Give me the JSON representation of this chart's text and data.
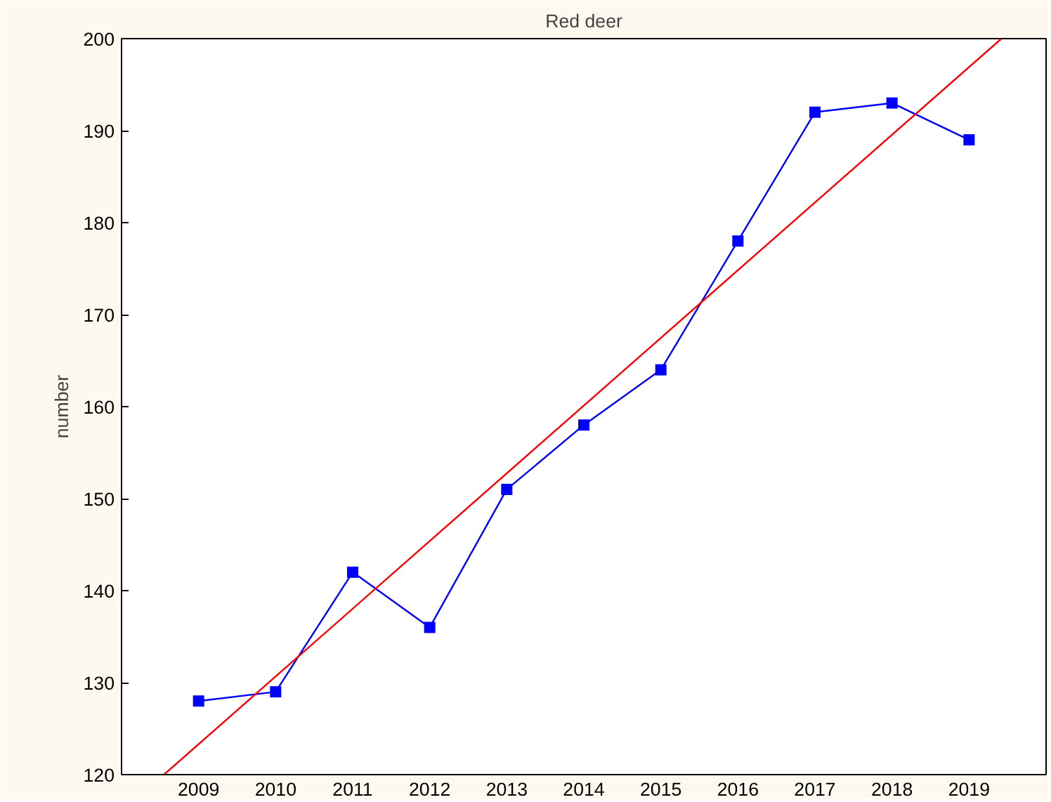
{
  "chart_data": {
    "type": "line",
    "title": "Red deer",
    "ylabel": "number",
    "x": [
      2009,
      2010,
      2011,
      2012,
      2013,
      2014,
      2015,
      2016,
      2017,
      2018,
      2019
    ],
    "series": [
      {
        "color": "#0000ff",
        "values": [
          128,
          129,
          142,
          136,
          151,
          158,
          164,
          178,
          192,
          193,
          189
        ],
        "marker": "square"
      },
      {
        "type": "line",
        "color": "#ff0000",
        "x": [
          2008.55,
          2019.42
        ],
        "values": [
          120,
          200
        ],
        "marker": "none"
      }
    ],
    "xlim": [
      2008,
      2020
    ],
    "ylim": [
      120,
      200
    ],
    "xticks": [
      2009,
      2010,
      2011,
      2012,
      2013,
      2014,
      2015,
      2016,
      2017,
      2018,
      2019
    ],
    "yticks": [
      120,
      130,
      140,
      150,
      160,
      170,
      180,
      190,
      200
    ],
    "grid": false
  }
}
